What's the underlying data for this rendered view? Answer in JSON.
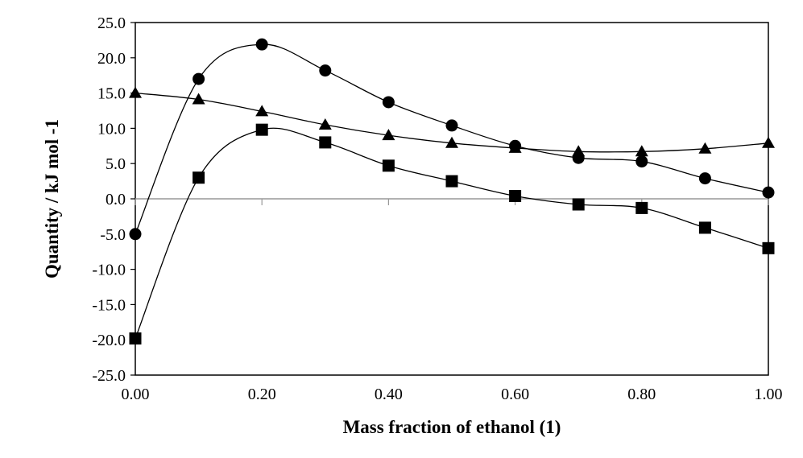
{
  "chart_data": {
    "type": "scatter",
    "title": "",
    "xlabel": "Mass fraction of ethanol (1)",
    "ylabel": "Quantity / kJ mol -1",
    "xlim": [
      0.0,
      1.0
    ],
    "ylim": [
      -25.0,
      25.0
    ],
    "x_ticks": [
      0.0,
      0.2,
      0.4,
      0.6,
      0.8,
      1.0
    ],
    "x_tick_labels": [
      "0.00",
      "0.20",
      "0.40",
      "0.60",
      "0.80",
      "1.00"
    ],
    "y_ticks": [
      -25,
      -20,
      -15,
      -10,
      -5,
      0,
      5,
      10,
      15,
      20,
      25
    ],
    "y_tick_labels": [
      "-25.0",
      "-20.0",
      "-15.0",
      "-10.0",
      "-5.0",
      "0.0",
      "5.0",
      "10.0",
      "15.0",
      "20.0",
      "25.0"
    ],
    "grid": false,
    "zero_line": true,
    "legend": "none",
    "series": [
      {
        "marker": "circle",
        "x": [
          0.0,
          0.1,
          0.2,
          0.3,
          0.4,
          0.5,
          0.6,
          0.7,
          0.8,
          0.9,
          1.0
        ],
        "y": [
          -5.0,
          17.0,
          21.9,
          18.2,
          13.7,
          10.4,
          7.5,
          5.8,
          5.3,
          2.9,
          0.9
        ]
      },
      {
        "marker": "triangle",
        "x": [
          0.0,
          0.1,
          0.2,
          0.3,
          0.4,
          0.5,
          0.6,
          0.7,
          0.8,
          0.9,
          1.0
        ],
        "y": [
          15.0,
          14.1,
          12.4,
          10.5,
          9.0,
          7.9,
          7.2,
          6.7,
          6.7,
          7.1,
          7.9
        ]
      },
      {
        "marker": "square",
        "x": [
          0.0,
          0.1,
          0.2,
          0.3,
          0.4,
          0.5,
          0.6,
          0.7,
          0.8,
          0.9,
          1.0
        ],
        "y": [
          -19.8,
          3.0,
          9.8,
          8.0,
          4.7,
          2.5,
          0.4,
          -0.8,
          -1.3,
          -4.1,
          -7.0
        ]
      }
    ]
  }
}
